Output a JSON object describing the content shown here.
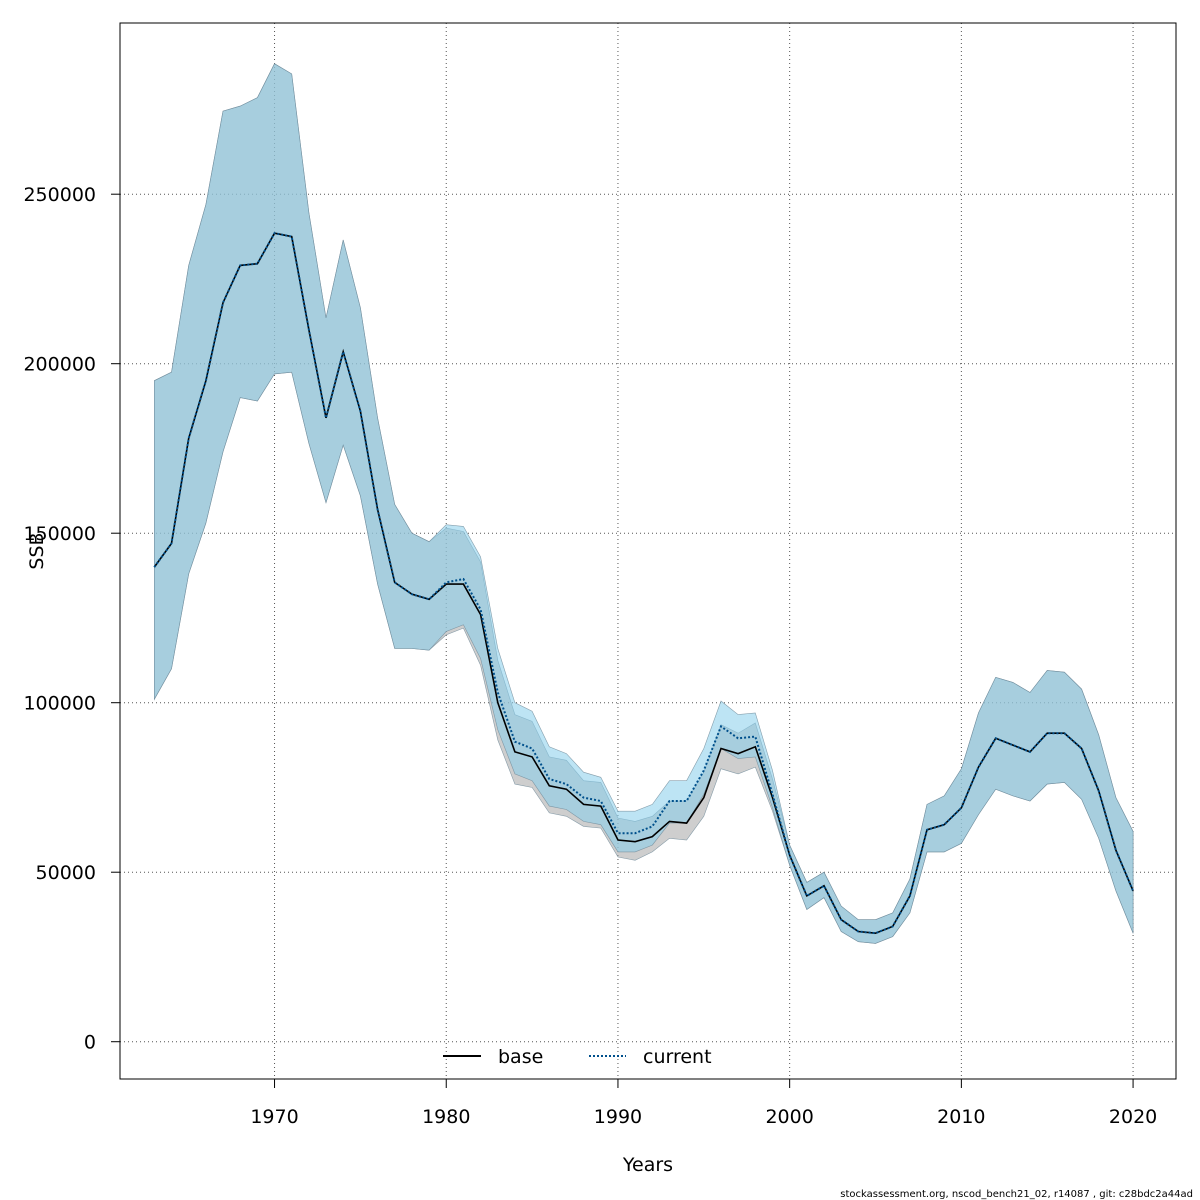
{
  "chart_data": {
    "type": "line",
    "xlabel": "Years",
    "ylabel": "SSB",
    "footer": "stockassessment.org, nscod_bench21_02, r14087 , git: c28bdc2a44ad",
    "xlim": [
      1961,
      2022.5
    ],
    "ylim": [
      -11000,
      300500
    ],
    "x_ticks": [
      1970,
      1980,
      1990,
      2000,
      2010,
      2020
    ],
    "y_ticks": [
      0,
      50000,
      100000,
      150000,
      200000,
      250000
    ],
    "x_tick_labels": [
      "1970",
      "1980",
      "1990",
      "2000",
      "2010",
      "2020"
    ],
    "y_tick_labels": [
      "0",
      "50000",
      "100000",
      "150000",
      "200000",
      "250000"
    ],
    "grid": true,
    "legend_position": "bottom",
    "colors": {
      "base_band": "#a6a6a6",
      "current_band": "#87ceeb",
      "base_line": "#000000",
      "current_line": "#00508c",
      "grid": "#555555"
    },
    "x": [
      1963,
      1964,
      1965,
      1966,
      1967,
      1968,
      1969,
      1970,
      1971,
      1972,
      1973,
      1974,
      1975,
      1976,
      1977,
      1978,
      1979,
      1980,
      1981,
      1982,
      1983,
      1984,
      1985,
      1986,
      1987,
      1988,
      1989,
      1990,
      1991,
      1992,
      1993,
      1994,
      1995,
      1996,
      1997,
      1998,
      1999,
      2000,
      2001,
      2002,
      2003,
      2004,
      2005,
      2006,
      2007,
      2008,
      2009,
      2010,
      2011,
      2012,
      2013,
      2014,
      2015,
      2016,
      2017,
      2018,
      2019,
      2020
    ],
    "series": [
      {
        "name": "base",
        "style": "solid",
        "values": [
          140000,
          147000,
          178000,
          195000,
          218000,
          229000,
          229500,
          238500,
          237500,
          210000,
          184000,
          203500,
          186000,
          157000,
          135500,
          132000,
          130500,
          135000,
          135000,
          126000,
          100000,
          85500,
          84000,
          75500,
          74500,
          70000,
          69500,
          59500,
          59000,
          60500,
          65000,
          64500,
          72000,
          86500,
          85000,
          87000,
          72000,
          55000,
          43000,
          46000,
          36000,
          32500,
          32000,
          34000,
          43000,
          62500,
          64000,
          69000,
          81000,
          89500,
          87500,
          85500,
          91000,
          91000,
          86500,
          74000,
          56500,
          44500
        ],
        "lower": [
          101000,
          110000,
          138000,
          153000,
          174000,
          190000,
          189000,
          197000,
          197500,
          176500,
          159000,
          176000,
          161000,
          135000,
          116000,
          116000,
          115500,
          120000,
          122000,
          111000,
          89000,
          76000,
          75000,
          67500,
          66500,
          63500,
          63000,
          54500,
          53500,
          56000,
          60000,
          59500,
          66500,
          80500,
          79000,
          81000,
          68000,
          52000,
          39000,
          42500,
          32500,
          29500,
          29000,
          31000,
          38000,
          56000,
          56000,
          58500,
          67000,
          74500,
          72500,
          71000,
          76000,
          76500,
          71500,
          60000,
          44500,
          32000
        ],
        "upper": [
          195000,
          197500,
          229000,
          247000,
          274500,
          276000,
          278500,
          288500,
          285500,
          244500,
          213500,
          236500,
          216500,
          184000,
          158500,
          150000,
          147500,
          151500,
          150500,
          141500,
          112500,
          96500,
          94500,
          84000,
          83000,
          77000,
          76500,
          66000,
          65000,
          66500,
          71000,
          71000,
          79500,
          93500,
          91000,
          94000,
          77500,
          58000,
          47000,
          50000,
          40000,
          36000,
          36000,
          38000,
          48000,
          70000,
          72500,
          80500,
          97000,
          107500,
          106000,
          103000,
          109500,
          109000,
          104000,
          90500,
          72000,
          62000
        ]
      },
      {
        "name": "current",
        "style": "dotted",
        "values": [
          140000,
          147000,
          178000,
          195000,
          218000,
          229000,
          229500,
          238500,
          237500,
          210000,
          184000,
          203500,
          186000,
          157000,
          135500,
          132000,
          130500,
          135500,
          136500,
          127500,
          103000,
          88500,
          86500,
          77500,
          76000,
          72000,
          71000,
          61500,
          61500,
          63500,
          71000,
          71000,
          80000,
          93000,
          89500,
          90000,
          73000,
          55000,
          43000,
          46000,
          36000,
          32500,
          32000,
          34000,
          43000,
          62500,
          64000,
          69000,
          81000,
          89500,
          87500,
          85500,
          91000,
          91000,
          86500,
          74000,
          56500,
          44500
        ],
        "lower": [
          101000,
          110000,
          138000,
          153000,
          174000,
          190000,
          189000,
          197000,
          197500,
          176500,
          159000,
          176000,
          161000,
          135000,
          116000,
          116000,
          115500,
          121000,
          123000,
          113000,
          92000,
          79000,
          77000,
          69500,
          68500,
          65000,
          64000,
          56000,
          56000,
          58000,
          64500,
          64500,
          73000,
          86500,
          83500,
          84000,
          69000,
          52000,
          39000,
          42500,
          32500,
          29500,
          29000,
          31000,
          38000,
          56000,
          56000,
          58500,
          67000,
          74500,
          72500,
          71000,
          76000,
          76500,
          71500,
          60000,
          44500,
          32000
        ],
        "upper": [
          195000,
          197500,
          229000,
          247000,
          274500,
          276000,
          278500,
          288500,
          285500,
          244500,
          213500,
          236500,
          216500,
          184000,
          158500,
          150000,
          147500,
          152500,
          152000,
          143000,
          116000,
          100000,
          97500,
          87000,
          85000,
          79500,
          78000,
          68000,
          68000,
          70000,
          77000,
          77000,
          86500,
          100500,
          96500,
          97000,
          80000,
          58000,
          47000,
          50000,
          40000,
          36000,
          36000,
          38000,
          48000,
          70000,
          72500,
          80500,
          97000,
          107500,
          106000,
          103000,
          109500,
          109000,
          104000,
          90500,
          72000,
          62000
        ]
      }
    ]
  }
}
